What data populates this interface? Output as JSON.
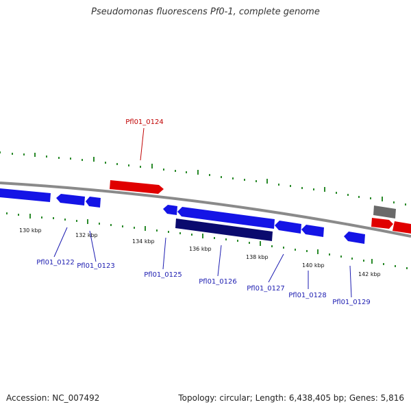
{
  "title": "Pseudomonas fluorescens Pf0-1, complete genome",
  "footer": {
    "accession": "Accession: NC_007492",
    "summary": "Topology: circular; Length: 6,438,405 bp; Genes: 5,816"
  },
  "colors": {
    "backbone": "#8a8a8a",
    "tick": "#2a8a2a",
    "forward_gene": "#e00000",
    "reverse_gene": "#1414e6",
    "dark_gene": "#0a0a6e",
    "gray_gene": "#6a6a6a",
    "reverse_label": "#1a1ab0",
    "forward_label": "#c00000"
  },
  "kbp_labels": [
    "130 kbp",
    "132 kbp",
    "134 kbp",
    "136 kbp",
    "138 kbp",
    "140 kbp",
    "142 kbp"
  ],
  "gene_labels": {
    "pfl_0124": "Pfl01_0124",
    "pfl_0122": "Pfl01_0122",
    "pfl_0123": "Pfl01_0123",
    "pfl_0125": "Pfl01_0125",
    "pfl_0126": "Pfl01_0126",
    "pfl_0127": "Pfl01_0127",
    "pfl_0128": "Pfl01_0128",
    "pfl_0129": "Pfl01_0129"
  }
}
